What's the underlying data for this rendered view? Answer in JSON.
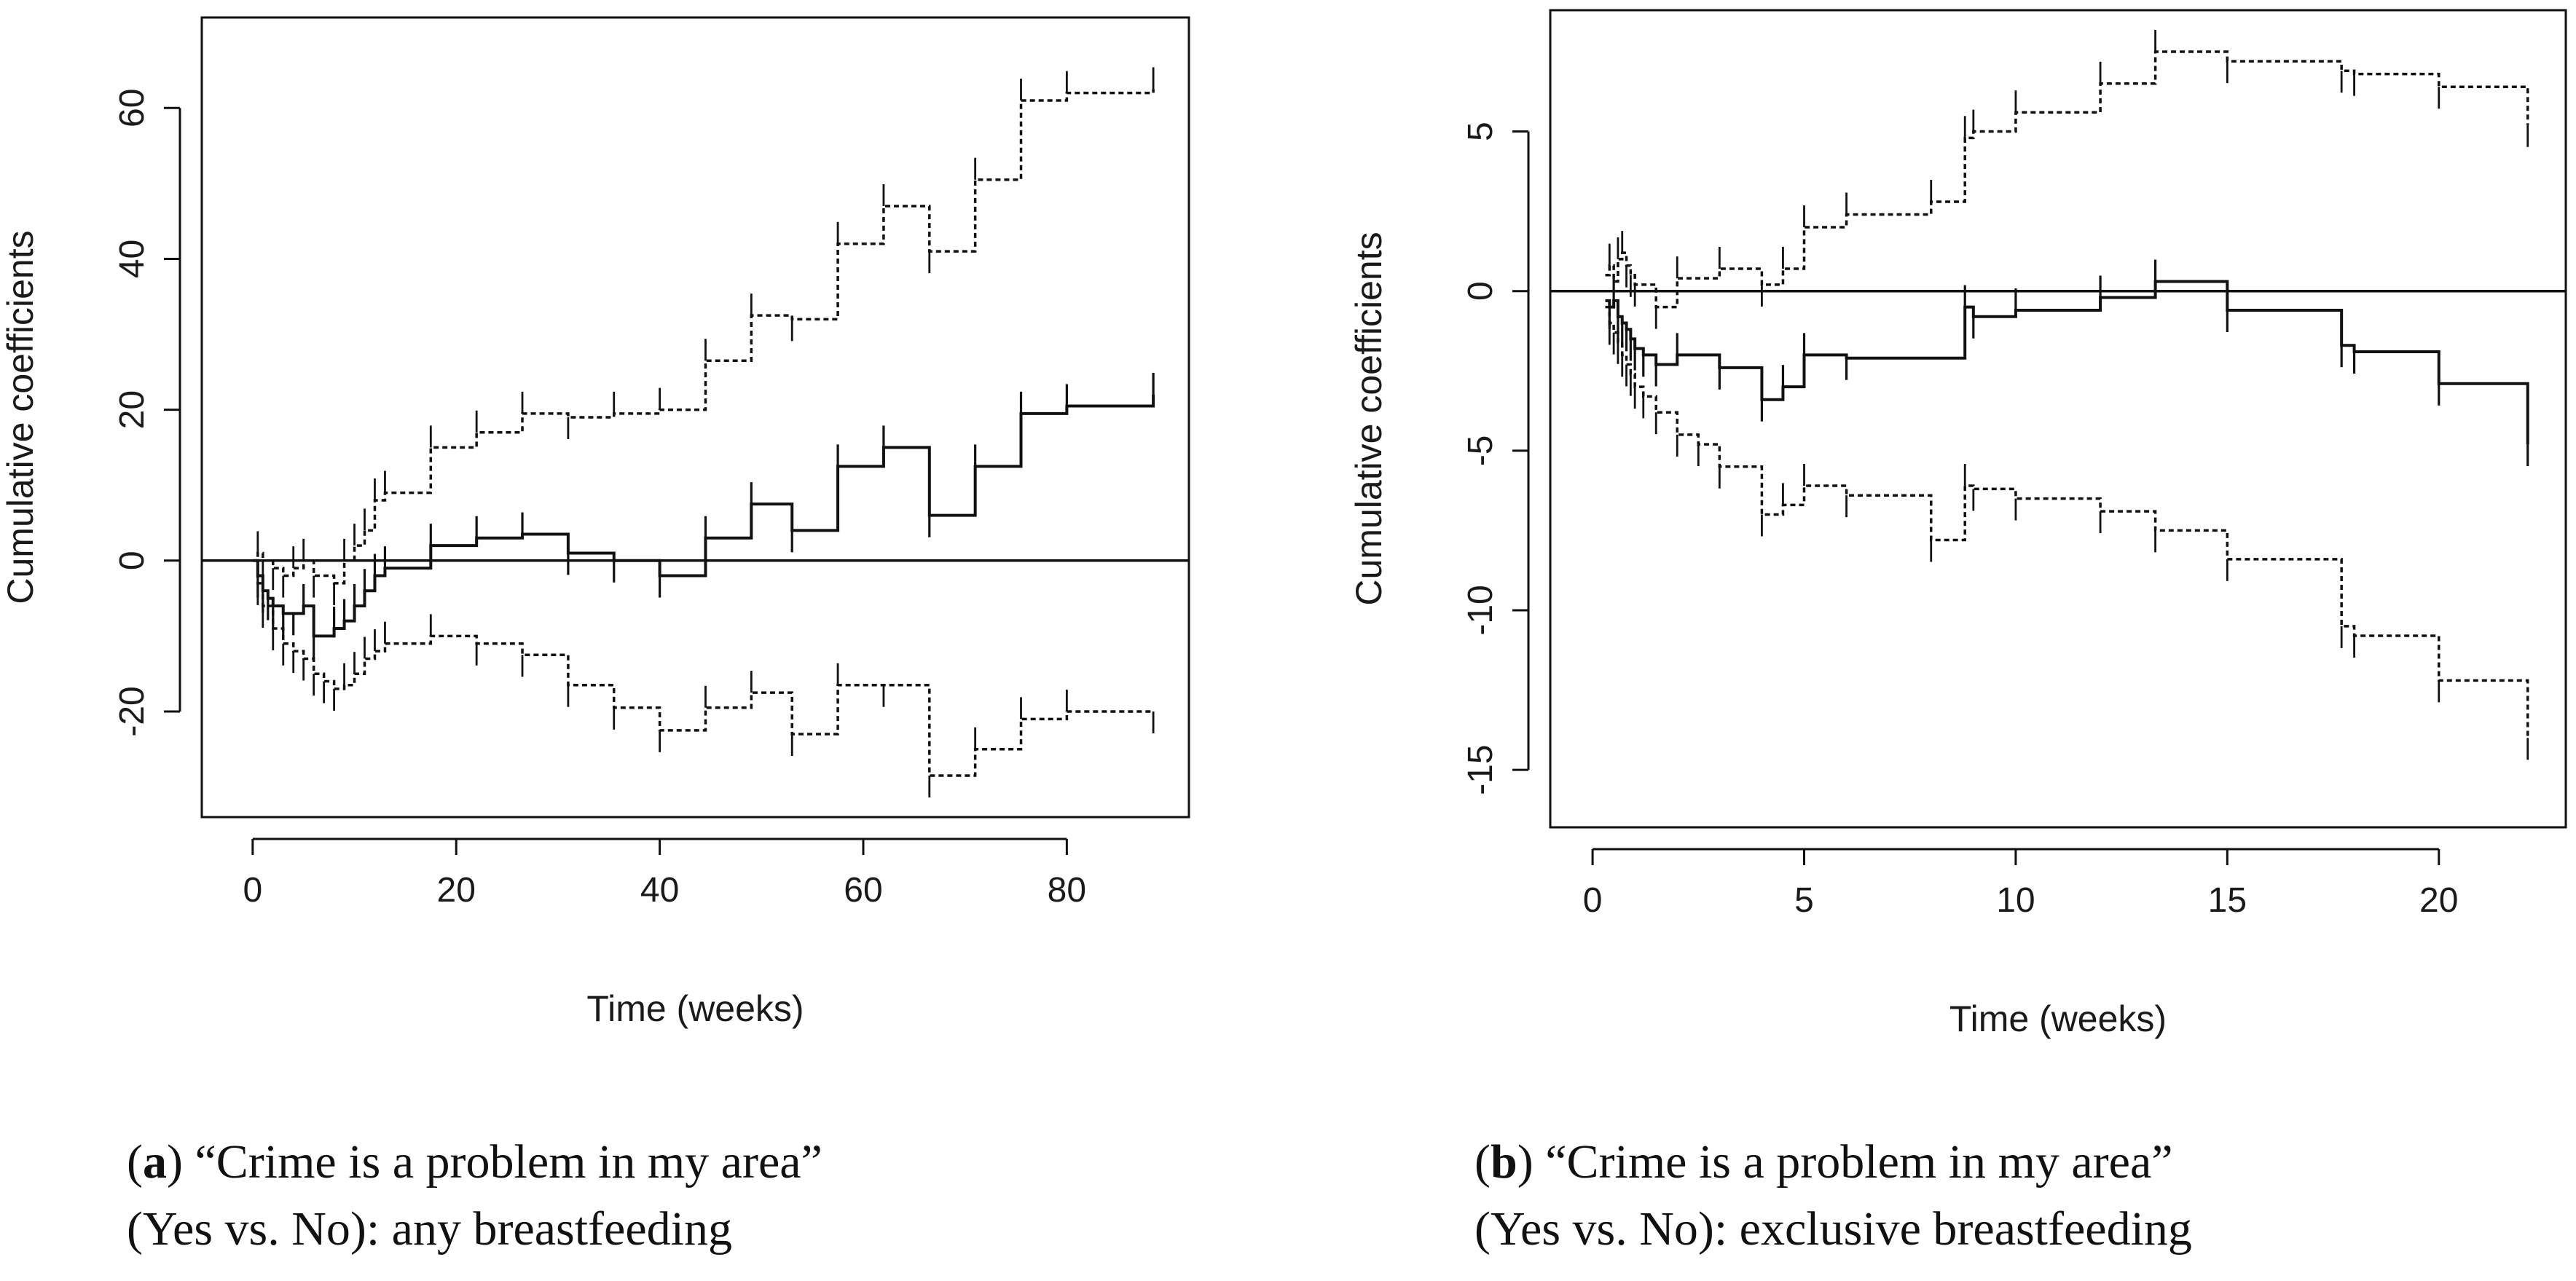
{
  "chart_data": [
    {
      "type": "line",
      "xlabel": "Time (weeks)",
      "ylabel": "Cumulative coefficients",
      "xlim": [
        -5,
        92
      ],
      "ylim": [
        -34,
        72
      ],
      "x_ticks": [
        0,
        20,
        40,
        60,
        80
      ],
      "y_ticks": [
        -20,
        0,
        20,
        40,
        60
      ],
      "x_tick_labels": [
        "0",
        "20",
        "40",
        "60",
        "80"
      ],
      "y_tick_labels": [
        "-20",
        "0",
        "20",
        "40",
        "60"
      ],
      "reference_line": 0,
      "caption": {
        "tag": "a",
        "line1": "“Crime is a problem in my area”",
        "line2": "(Yes vs. No): any breastfeeding"
      },
      "series": [
        {
          "line_style": "solid",
          "x": [
            0,
            0.5,
            1,
            1.5,
            2,
            3,
            4,
            5,
            6,
            8,
            9,
            10,
            11,
            12,
            13,
            17.5,
            22,
            26.5,
            31,
            35.5,
            40,
            44.5,
            49,
            53,
            57.5,
            62,
            66.5,
            71,
            75.5,
            80,
            88.5
          ],
          "y": [
            0,
            -2,
            -4,
            -5,
            -6,
            -7,
            -7,
            -6,
            -10,
            -9,
            -8,
            -6,
            -4,
            -2,
            -1,
            2,
            3,
            3.5,
            1,
            0,
            -2,
            3,
            7.5,
            4,
            12.5,
            15,
            6,
            12.5,
            19.5,
            20.5,
            22
          ]
        },
        {
          "line_style": "dotted",
          "x": [
            0,
            0.5,
            1,
            2,
            3,
            4,
            5,
            6,
            8,
            9,
            10,
            11,
            12,
            13,
            17.5,
            22,
            26.5,
            31,
            35.5,
            40,
            44.5,
            49,
            53,
            57.5,
            62,
            66.5,
            71,
            75.5,
            80,
            88.5
          ],
          "y": [
            0,
            1,
            0,
            -1,
            -2,
            -1,
            0,
            -2,
            -3,
            0,
            2,
            4,
            8,
            9,
            15,
            17,
            19.5,
            19,
            19.5,
            20,
            26.5,
            32.5,
            32,
            42,
            47,
            41,
            50.5,
            61,
            62,
            62.5
          ]
        },
        {
          "line_style": "dotted",
          "x": [
            0,
            0.5,
            1,
            2,
            3,
            4,
            5,
            6,
            7,
            8,
            9,
            10,
            11,
            12,
            13,
            17.5,
            22,
            26.5,
            31,
            35.5,
            40,
            44.5,
            49,
            53,
            57.5,
            62,
            66.5,
            71,
            75.5,
            80,
            88.5
          ],
          "y": [
            0,
            -3,
            -6,
            -9,
            -11,
            -12,
            -13,
            -15,
            -16,
            -17,
            -16.5,
            -15,
            -13,
            -12,
            -11,
            -10,
            -11,
            -12.5,
            -16.5,
            -19.5,
            -22.5,
            -19.5,
            -17.5,
            -23,
            -16.5,
            -16.5,
            -28.5,
            -25,
            -21,
            -20,
            -20
          ]
        }
      ]
    },
    {
      "type": "line",
      "xlabel": "Time (weeks)",
      "ylabel": "Cumulative coefficients",
      "xlim": [
        -1,
        23
      ],
      "ylim": [
        -16.8,
        8.8
      ],
      "x_ticks": [
        0,
        5,
        10,
        15,
        20
      ],
      "y_ticks": [
        -15,
        -10,
        -5,
        0,
        5
      ],
      "x_tick_labels": [
        "0",
        "5",
        "10",
        "15",
        "20"
      ],
      "y_tick_labels": [
        "-15",
        "-10",
        "-5",
        "0",
        "5"
      ],
      "reference_line": 0,
      "caption": {
        "tag": "b",
        "line1": "“Crime is a problem in my area”",
        "line2": "(Yes vs. No): exclusive breastfeeding"
      },
      "series": [
        {
          "line_style": "solid",
          "x": [
            0.3,
            0.4,
            0.5,
            0.6,
            0.7,
            0.8,
            0.9,
            1.0,
            1.2,
            1.5,
            2.0,
            3.0,
            4.0,
            4.5,
            5.0,
            6.0,
            8.8,
            9.0,
            10.0,
            12.0,
            13.3,
            15.0,
            17.7,
            18.0,
            20.0,
            22.1
          ],
          "y": [
            -0.3,
            -0.5,
            -0.3,
            -0.8,
            -1.0,
            -1.2,
            -1.5,
            -1.8,
            -2.0,
            -2.3,
            -2.0,
            -2.4,
            -3.4,
            -3.0,
            -2.0,
            -2.1,
            -0.5,
            -0.8,
            -0.6,
            -0.2,
            0.3,
            -0.6,
            -1.7,
            -1.9,
            -2.9,
            -4.8
          ]
        },
        {
          "line_style": "dotted",
          "x": [
            0.3,
            0.4,
            0.5,
            0.6,
            0.7,
            0.8,
            0.9,
            1.0,
            1.5,
            2.0,
            3.0,
            4.0,
            4.5,
            5.0,
            6.0,
            8.0,
            8.8,
            9.0,
            10.0,
            12.0,
            13.3,
            15.0,
            17.7,
            18.0,
            20.0,
            22.1
          ],
          "y": [
            0.5,
            0.8,
            0.3,
            1.0,
            1.2,
            0.8,
            0.5,
            0.2,
            -0.5,
            0.4,
            0.7,
            0.2,
            0.7,
            2.0,
            2.4,
            2.8,
            4.8,
            5.0,
            5.6,
            6.5,
            7.5,
            7.2,
            6.9,
            6.8,
            6.4,
            5.2
          ]
        },
        {
          "line_style": "dotted",
          "x": [
            0.3,
            0.4,
            0.5,
            0.6,
            0.7,
            0.8,
            0.9,
            1.0,
            1.2,
            1.5,
            2.0,
            2.5,
            3.0,
            4.0,
            4.5,
            5.0,
            6.0,
            8.0,
            8.8,
            9.0,
            10.0,
            12.0,
            13.3,
            15.0,
            17.7,
            18.0,
            20.0,
            22.1
          ],
          "y": [
            -0.5,
            -1.0,
            -1.3,
            -1.6,
            -2.0,
            -2.3,
            -2.6,
            -3.0,
            -3.3,
            -3.8,
            -4.5,
            -4.8,
            -5.5,
            -7.0,
            -6.7,
            -6.1,
            -6.4,
            -7.8,
            -6.1,
            -6.2,
            -6.5,
            -6.9,
            -7.5,
            -8.4,
            -10.5,
            -10.8,
            -12.2,
            -14.0
          ]
        }
      ]
    }
  ]
}
